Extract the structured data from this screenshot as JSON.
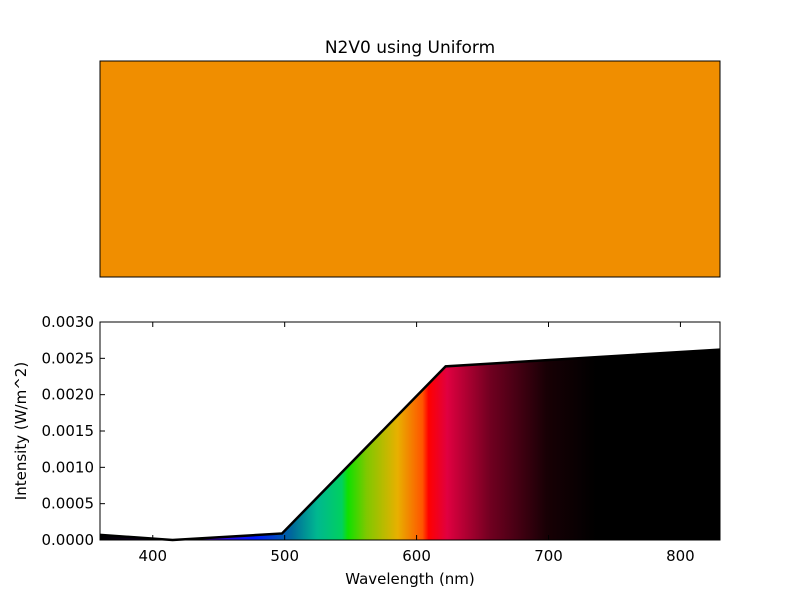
{
  "title": "N2V0 using Uniform",
  "swatch_color": "#f08e00",
  "chart_data": {
    "type": "area",
    "xlabel": "Wavelength (nm)",
    "ylabel": "Intensity (W/m^2)",
    "xlim": [
      360,
      830
    ],
    "ylim": [
      0,
      0.003
    ],
    "xticks": [
      400,
      500,
      600,
      700,
      800
    ],
    "yticks": [
      "0.0000",
      "0.0005",
      "0.0010",
      "0.0015",
      "0.0020",
      "0.0025",
      "0.0030"
    ],
    "x": [
      360,
      415,
      498,
      622,
      830
    ],
    "y": [
      7e-05,
      0.0,
      9e-05,
      0.00239,
      0.00262
    ],
    "fill": "visible spectrum colors",
    "grid": false
  }
}
